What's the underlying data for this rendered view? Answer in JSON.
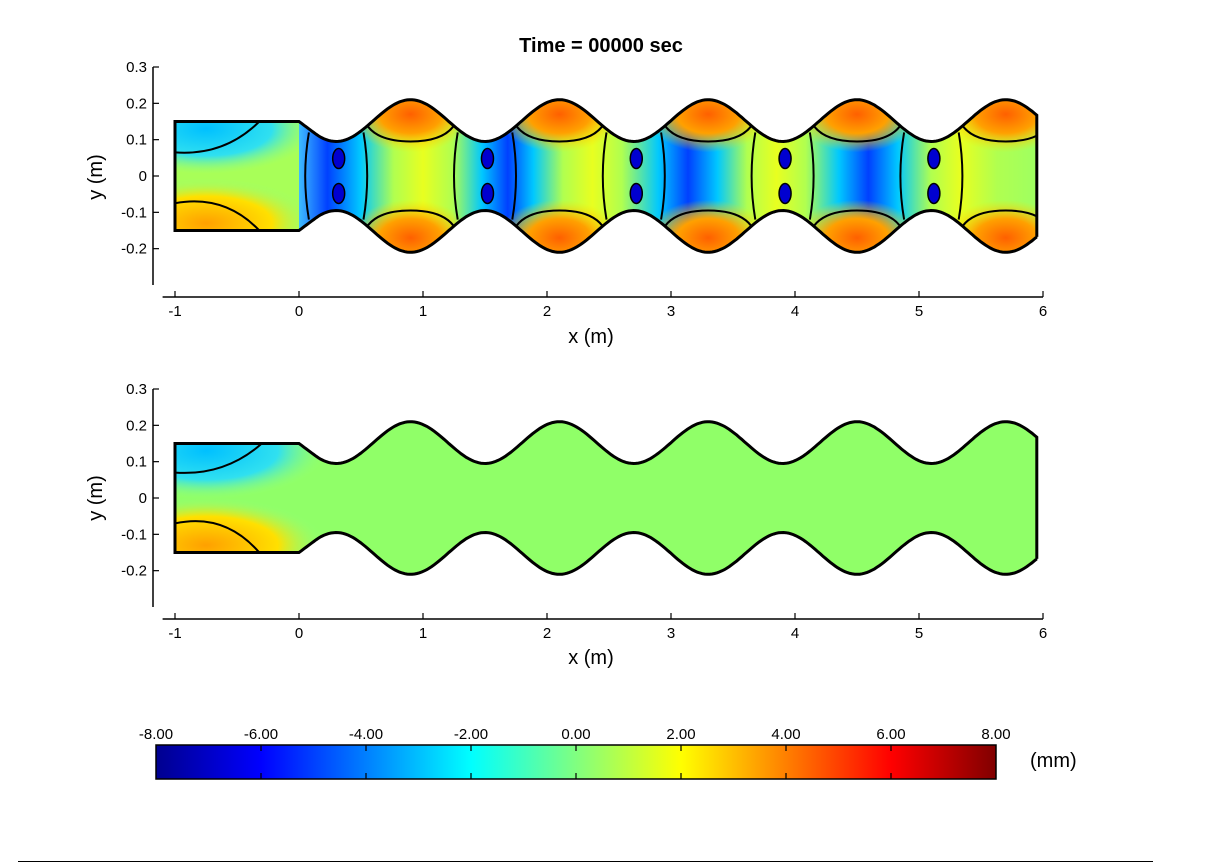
{
  "title": "Time = 00000 sec",
  "chart_data": [
    {
      "type": "heatmap",
      "name": "top-panel",
      "xlabel": "x (m)",
      "ylabel": "y (m)",
      "xlim": [
        -1.1,
        6
      ],
      "ylim": [
        -0.3,
        0.3
      ],
      "xticks": [
        "-1",
        "0",
        "1",
        "2",
        "3",
        "4",
        "5",
        "6"
      ],
      "yticks": [
        "0.3",
        "0.2",
        "0.1",
        "0",
        "-0.1",
        "-0.2"
      ],
      "grid": false,
      "domain": {
        "inlet_x": [
          -1,
          0
        ],
        "inlet_half_width": 0.15,
        "wavy_x": [
          0,
          5.95
        ],
        "wavy_half_width_min": 0.095,
        "wavy_half_width_max": 0.21,
        "wavelength": 1.2
      },
      "hot_lobes_x": [
        0.9,
        2.1,
        3.3,
        4.5,
        5.7
      ],
      "cold_necks_x": [
        0.3,
        1.5,
        2.7,
        3.9,
        5.1
      ],
      "inlet_values": {
        "top": -1.5,
        "bottom": 2.0
      }
    },
    {
      "type": "heatmap",
      "name": "bottom-panel",
      "xlabel": "x (m)",
      "ylabel": "y (m)",
      "xlim": [
        -1.1,
        6
      ],
      "ylim": [
        -0.3,
        0.3
      ],
      "xticks": [
        "-1",
        "0",
        "1",
        "2",
        "3",
        "4",
        "5",
        "6"
      ],
      "yticks": [
        "0.3",
        "0.2",
        "0.1",
        "0",
        "-0.1",
        "-0.2"
      ],
      "grid": false,
      "domain": {
        "inlet_x": [
          -1,
          0
        ],
        "inlet_half_width": 0.15,
        "wavy_x": [
          0,
          5.95
        ],
        "wavy_half_width_min": 0.095,
        "wavy_half_width_max": 0.21,
        "wavelength": 1.2
      },
      "field_value": 0.0,
      "inlet_values": {
        "top": -1.5,
        "bottom": 2.0
      }
    }
  ],
  "colorbar": {
    "unit": "(mm)",
    "range": [
      -8,
      8
    ],
    "ticks": [
      "-8.00",
      "-6.00",
      "-4.00",
      "-2.00",
      "0.00",
      "2.00",
      "4.00",
      "6.00",
      "8.00"
    ],
    "colormap": [
      "#00008f",
      "#0000ff",
      "#00ffff",
      "#ffff00",
      "#ff0000",
      "#800000"
    ]
  }
}
